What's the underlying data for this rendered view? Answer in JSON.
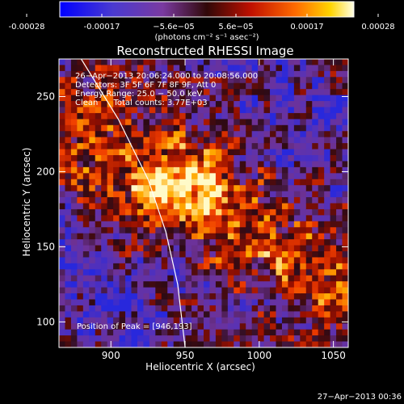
{
  "colorbar": {
    "ticks": [
      "-0.00028",
      "-0.00017",
      "−5.6e−05",
      "5.6e−05",
      "0.00017",
      "0.00028"
    ],
    "unit_label": "(photons cm⁻² s⁻¹ asec⁻²)",
    "colors": [
      "#0000ff",
      "#5a2bb0",
      "#7a3aa0",
      "#3a0a10",
      "#ff2a00",
      "#ffd400",
      "#ffffe0"
    ]
  },
  "chart_data": {
    "type": "heatmap",
    "title": "Reconstructed RHESSI Image",
    "xlabel": "Heliocentric X (arcsec)",
    "ylabel": "Heliocentric Y (arcsec)",
    "xlim": [
      865,
      1060
    ],
    "ylim": [
      83,
      275
    ],
    "xticks": [
      900,
      950,
      1000,
      1050
    ],
    "yticks": [
      100,
      150,
      200,
      250
    ],
    "annotations": [
      "26−Apr−2013 20:06:24.000 to 20:08:56.000",
      "Detectors: 3F 5F 6F 7F 8F 9F, Att 0",
      "Energy Range: 25.0 − 50.0 keV",
      "Clean      Total counts: 3.77E+03"
    ],
    "peak_label": "Position of Peak = [946,193]",
    "peak": [
      946,
      193
    ],
    "limb_color": "#ffffff"
  },
  "footer": {
    "timestamp": "27−Apr−2013 00:36"
  }
}
